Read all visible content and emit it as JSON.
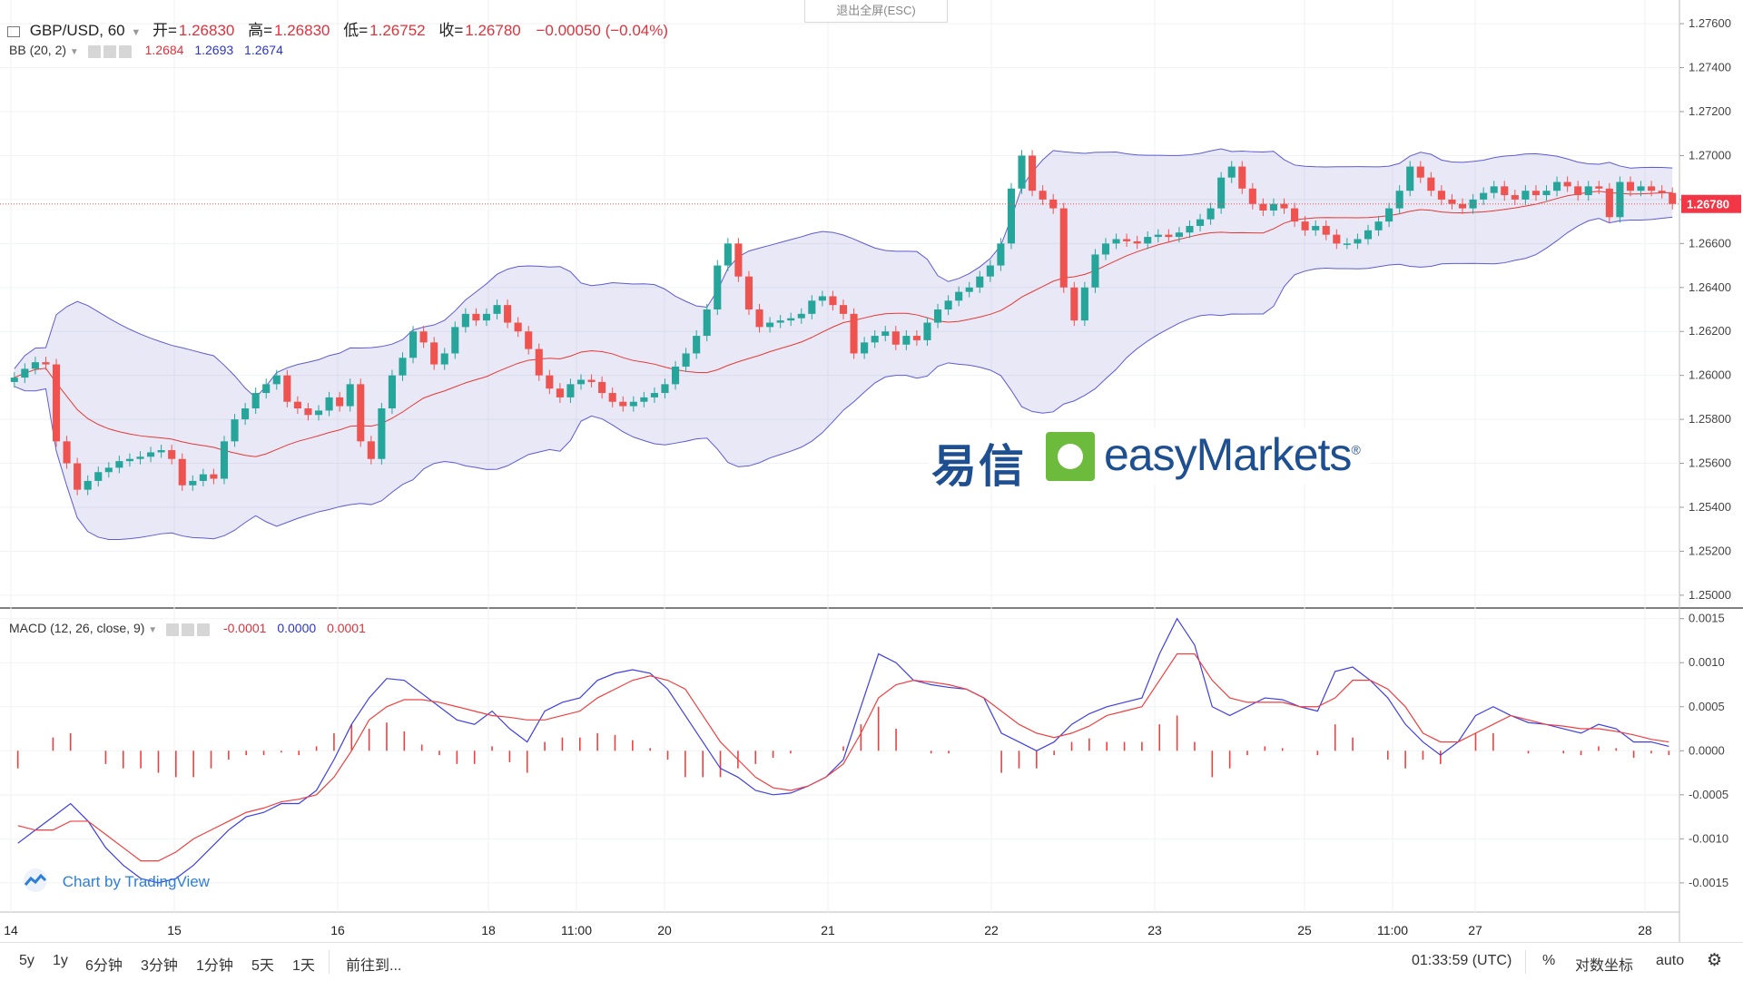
{
  "header": {
    "symbol": "GBP/USD, 60",
    "open_label": "开=",
    "open": "1.26830",
    "high_label": "高=",
    "high": "1.26830",
    "low_label": "低=",
    "low": "1.26752",
    "close_label": "收=",
    "close": "1.26780",
    "change": "−0.00050 (−0.04%)"
  },
  "exit_fullscreen": "退出全屏(ESC)",
  "bb": {
    "label": "BB (20, 2)",
    "v1": "1.2684",
    "v2": "1.2693",
    "v3": "1.2674"
  },
  "macd": {
    "label": "MACD (12, 26, close, 9)",
    "v1": "-0.0001",
    "v2": "0.0000",
    "v3": "0.0001"
  },
  "watermark": {
    "cn": "易信",
    "en": "easyMarkets",
    "reg": "®"
  },
  "tv_logo": "Chart by TradingView",
  "bottom": {
    "ranges": [
      "5y",
      "1y",
      "6分钟",
      "3分钟",
      "1分钟",
      "5天",
      "1天"
    ],
    "goto": "前往到...",
    "time": "01:33:59 (UTC)",
    "percent": "%",
    "log": "对数坐标",
    "auto": "auto"
  },
  "colors": {
    "up": "#26a69a",
    "down": "#ef5350",
    "band": "#5b5bd6",
    "basis": "#e53935",
    "macd": "#3f3fe0",
    "signal": "#ef4040"
  },
  "chart_data": [
    {
      "type": "candlestick",
      "title": "GBP/USD, 60",
      "y_ticks": [
        "1.27600",
        "1.27400",
        "1.27200",
        "1.27000",
        "1.26800",
        "1.26600",
        "1.26400",
        "1.26200",
        "1.26000",
        "1.25800",
        "1.25600",
        "1.25400",
        "1.25200",
        "1.25000"
      ],
      "ylim": [
        1.2495,
        1.2765
      ],
      "last_price": "1.26780",
      "x_ticks": [
        "14",
        "15",
        "16",
        "18",
        "11:00",
        "20",
        "21",
        "22",
        "23",
        "25",
        "11:00",
        "27",
        "28"
      ],
      "indicator": "Bollinger Bands (20, 2)",
      "series_close": [
        1.2599,
        1.2603,
        1.2606,
        1.2605,
        1.257,
        1.256,
        1.2548,
        1.2552,
        1.2556,
        1.2558,
        1.2561,
        1.2562,
        1.2563,
        1.2565,
        1.2566,
        1.2562,
        1.255,
        1.2552,
        1.2555,
        1.2553,
        1.257,
        1.258,
        1.2585,
        1.2592,
        1.2596,
        1.26,
        1.2588,
        1.2585,
        1.2582,
        1.2584,
        1.259,
        1.2586,
        1.2596,
        1.257,
        1.2562,
        1.2585,
        1.26,
        1.2608,
        1.262,
        1.2615,
        1.2605,
        1.261,
        1.2622,
        1.2628,
        1.2625,
        1.2628,
        1.2632,
        1.2624,
        1.262,
        1.2612,
        1.26,
        1.2594,
        1.259,
        1.2596,
        1.2598,
        1.2597,
        1.2592,
        1.2588,
        1.2586,
        1.2588,
        1.259,
        1.2592,
        1.2596,
        1.2604,
        1.261,
        1.2618,
        1.263,
        1.265,
        1.266,
        1.2645,
        1.263,
        1.2622,
        1.2624,
        1.2625,
        1.2626,
        1.2628,
        1.2634,
        1.2636,
        1.2632,
        1.2628,
        1.261,
        1.2615,
        1.2618,
        1.262,
        1.2614,
        1.2618,
        1.2616,
        1.2624,
        1.263,
        1.2634,
        1.2638,
        1.264,
        1.2645,
        1.265,
        1.266,
        1.2685,
        1.27,
        1.2684,
        1.268,
        1.2676,
        1.264,
        1.2625,
        1.264,
        1.2655,
        1.266,
        1.2662,
        1.2661,
        1.266,
        1.2663,
        1.2664,
        1.2663,
        1.2665,
        1.2668,
        1.2671,
        1.2676,
        1.269,
        1.2695,
        1.2685,
        1.2678,
        1.2675,
        1.2678,
        1.2676,
        1.267,
        1.2666,
        1.2668,
        1.2664,
        1.266,
        1.266,
        1.2662,
        1.2666,
        1.267,
        1.2676,
        1.2684,
        1.2695,
        1.269,
        1.2684,
        1.268,
        1.2678,
        1.2676,
        1.268,
        1.2683,
        1.2686,
        1.2682,
        1.268,
        1.2684,
        1.2682,
        1.2684,
        1.2688,
        1.2686,
        1.2682,
        1.2686,
        1.2685,
        1.2672,
        1.2688,
        1.2684,
        1.2686,
        1.2684,
        1.2683,
        1.2678
      ]
    },
    {
      "type": "line",
      "title": "MACD (12, 26, close, 9)",
      "y_ticks": [
        "0.0015",
        "0.0010",
        "0.0005",
        "0.0000",
        "-0.0005",
        "-0.0010",
        "-0.0015"
      ],
      "ylim": [
        -0.0018,
        0.0016
      ],
      "series": [
        {
          "name": "MACD",
          "values": [
            -0.00105,
            -0.0009,
            -0.00075,
            -0.0006,
            -0.0008,
            -0.0011,
            -0.0013,
            -0.00145,
            -0.0015,
            -0.00145,
            -0.0013,
            -0.0011,
            -0.0009,
            -0.00075,
            -0.0007,
            -0.0006,
            -0.0006,
            -0.00045,
            -0.0001,
            0.0003,
            0.0006,
            0.00082,
            0.0008,
            0.00065,
            0.0005,
            0.00035,
            0.0003,
            0.00045,
            0.00025,
            0.0001,
            0.00045,
            0.00055,
            0.0006,
            0.0008,
            0.00088,
            0.00092,
            0.00088,
            0.0007,
            0.0004,
            0.0001,
            -0.0002,
            -0.0003,
            -0.00045,
            -0.0005,
            -0.00048,
            -0.0004,
            -0.0003,
            -0.0001,
            0.0005,
            0.0011,
            0.001,
            0.0008,
            0.00075,
            0.00072,
            0.0007,
            0.0006,
            0.0002,
            0.0001,
            0.0,
            0.0001,
            0.0003,
            0.00042,
            0.0005,
            0.00055,
            0.0006,
            0.0011,
            0.0015,
            0.0012,
            0.0005,
            0.0004,
            0.0005,
            0.0006,
            0.00058,
            0.0005,
            0.00045,
            0.0009,
            0.00095,
            0.0008,
            0.0006,
            0.0003,
            0.0001,
            -5e-05,
            0.0001,
            0.0004,
            0.0005,
            0.0004,
            0.00032,
            0.0003,
            0.00025,
            0.0002,
            0.0003,
            0.00025,
            0.0001,
            0.0001,
            5e-05
          ]
        },
        {
          "name": "Signal",
          "values": [
            -0.00085,
            -0.0009,
            -0.0009,
            -0.0008,
            -0.0008,
            -0.00095,
            -0.0011,
            -0.00125,
            -0.00125,
            -0.00115,
            -0.001,
            -0.0009,
            -0.0008,
            -0.0007,
            -0.00065,
            -0.00058,
            -0.00055,
            -0.0005,
            -0.0003,
            0.0,
            0.00035,
            0.0005,
            0.00058,
            0.00058,
            0.00055,
            0.0005,
            0.00045,
            0.0004,
            0.00038,
            0.00035,
            0.00035,
            0.0004,
            0.00045,
            0.0006,
            0.0007,
            0.0008,
            0.00085,
            0.0008,
            0.0007,
            0.0004,
            0.0001,
            -0.0001,
            -0.0003,
            -0.00042,
            -0.00045,
            -0.0004,
            -0.0003,
            -0.00015,
            0.0002,
            0.0006,
            0.00075,
            0.0008,
            0.00078,
            0.00075,
            0.0007,
            0.0006,
            0.00045,
            0.0003,
            0.0002,
            0.00015,
            0.0002,
            0.00028,
            0.0004,
            0.00045,
            0.0005,
            0.0008,
            0.0011,
            0.0011,
            0.0008,
            0.0006,
            0.00055,
            0.00055,
            0.00055,
            0.0005,
            0.0005,
            0.0006,
            0.0008,
            0.0008,
            0.0007,
            0.0005,
            0.0002,
            0.0001,
            0.0001,
            0.0002,
            0.0003,
            0.0004,
            0.00035,
            0.0003,
            0.00028,
            0.00025,
            0.00025,
            0.00022,
            0.00018,
            0.00013,
            0.0001
          ]
        }
      ]
    }
  ]
}
